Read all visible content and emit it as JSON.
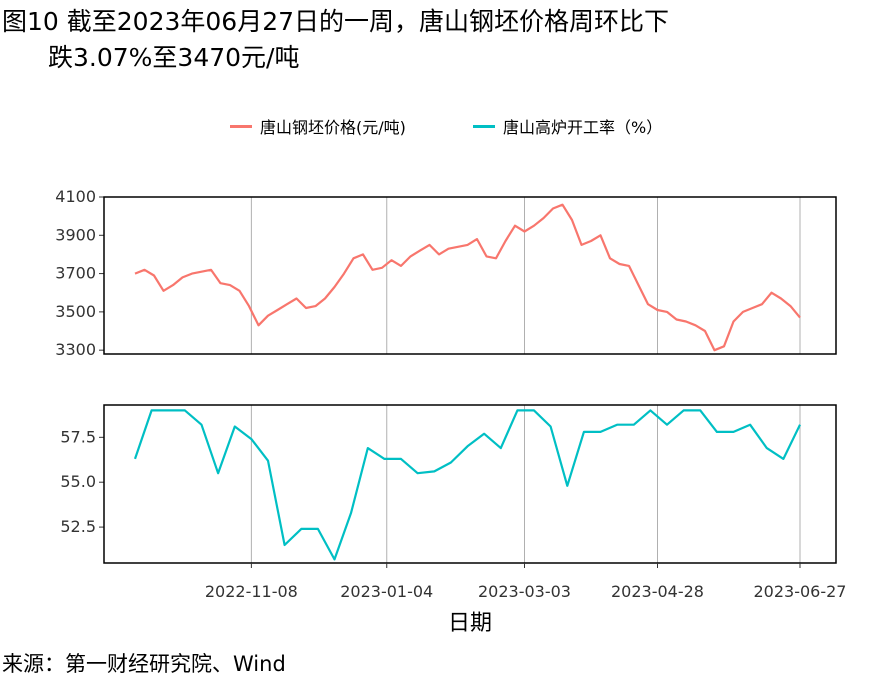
{
  "title": {
    "line1": "图10  截至2023年06月27日的一周，唐山钢坯价格周环比下",
    "line2": "跌3.07%至3470元/吨"
  },
  "source": "来源：第一财经研究院、Wind",
  "colors": {
    "price": "#F8766D",
    "blast": "#00BFC4",
    "grid": "#b0b0b0"
  },
  "chart_data": [
    {
      "type": "line",
      "series": [
        {
          "name": "唐山钢坯价格(元/吨)"
        }
      ],
      "xlabel": "日期",
      "x_ticks": [
        "2022-11-08",
        "2023-01-04",
        "2023-03-03",
        "2023-04-28",
        "2023-06-27"
      ],
      "y_ticks": [
        4100,
        3900,
        3700,
        3500,
        3300
      ],
      "ylim": [
        3280,
        4100
      ],
      "x": [
        "2022-09-20",
        "2022-09-24",
        "2022-09-28",
        "2022-10-02",
        "2022-10-06",
        "2022-10-10",
        "2022-10-14",
        "2022-10-18",
        "2022-10-22",
        "2022-10-26",
        "2022-10-30",
        "2022-11-03",
        "2022-11-07",
        "2022-11-11",
        "2022-11-15",
        "2022-11-19",
        "2022-11-23",
        "2022-11-27",
        "2022-12-01",
        "2022-12-05",
        "2022-12-09",
        "2022-12-13",
        "2022-12-17",
        "2022-12-21",
        "2022-12-25",
        "2022-12-29",
        "2023-01-02",
        "2023-01-06",
        "2023-01-10",
        "2023-01-14",
        "2023-01-18",
        "2023-01-22",
        "2023-01-26",
        "2023-01-30",
        "2023-02-03",
        "2023-02-07",
        "2023-02-11",
        "2023-02-15",
        "2023-02-19",
        "2023-02-23",
        "2023-02-27",
        "2023-03-03",
        "2023-03-07",
        "2023-03-11",
        "2023-03-15",
        "2023-03-19",
        "2023-03-23",
        "2023-03-27",
        "2023-03-31",
        "2023-04-04",
        "2023-04-08",
        "2023-04-12",
        "2023-04-16",
        "2023-04-20",
        "2023-04-24",
        "2023-04-28",
        "2023-05-02",
        "2023-05-06",
        "2023-05-10",
        "2023-05-14",
        "2023-05-18",
        "2023-05-22",
        "2023-05-26",
        "2023-05-30",
        "2023-06-03",
        "2023-06-07",
        "2023-06-11",
        "2023-06-15",
        "2023-06-19",
        "2023-06-23",
        "2023-06-27"
      ],
      "values": [
        3700,
        3720,
        3690,
        3610,
        3640,
        3680,
        3700,
        3710,
        3720,
        3650,
        3640,
        3610,
        3530,
        3430,
        3480,
        3510,
        3540,
        3570,
        3520,
        3530,
        3570,
        3630,
        3700,
        3780,
        3800,
        3720,
        3730,
        3770,
        3740,
        3790,
        3820,
        3850,
        3800,
        3830,
        3840,
        3850,
        3880,
        3790,
        3780,
        3870,
        3950,
        3920,
        3950,
        3990,
        4040,
        4060,
        3980,
        3850,
        3870,
        3900,
        3780,
        3750,
        3740,
        3640,
        3540,
        3510,
        3500,
        3460,
        3450,
        3430,
        3400,
        3300,
        3320,
        3450,
        3500,
        3520,
        3540,
        3600,
        3570,
        3530,
        3470
      ]
    },
    {
      "type": "line",
      "series": [
        {
          "name": "唐山高炉开工率（%）"
        }
      ],
      "xlabel": "日期",
      "x_ticks": [
        "2022-11-08",
        "2023-01-04",
        "2023-03-03",
        "2023-04-28",
        "2023-06-27"
      ],
      "y_ticks": [
        57.5,
        55.0,
        52.5
      ],
      "ylim": [
        50.5,
        59.3
      ],
      "x": [
        "2022-09-20",
        "2022-09-27",
        "2022-10-04",
        "2022-10-11",
        "2022-10-18",
        "2022-10-25",
        "2022-11-01",
        "2022-11-08",
        "2022-11-15",
        "2022-11-22",
        "2022-11-29",
        "2022-12-06",
        "2022-12-13",
        "2022-12-20",
        "2022-12-27",
        "2023-01-03",
        "2023-01-10",
        "2023-01-17",
        "2023-01-24",
        "2023-01-31",
        "2023-02-07",
        "2023-02-14",
        "2023-02-21",
        "2023-02-28",
        "2023-03-07",
        "2023-03-14",
        "2023-03-21",
        "2023-03-28",
        "2023-04-04",
        "2023-04-11",
        "2023-04-18",
        "2023-04-25",
        "2023-05-02",
        "2023-05-09",
        "2023-05-16",
        "2023-05-23",
        "2023-05-30",
        "2023-06-06",
        "2023-06-13",
        "2023-06-20",
        "2023-06-27"
      ],
      "values": [
        56.3,
        59.0,
        59.0,
        59.0,
        58.2,
        55.5,
        58.1,
        57.4,
        56.2,
        51.5,
        52.4,
        52.4,
        50.7,
        53.3,
        56.9,
        56.3,
        56.3,
        55.5,
        55.6,
        56.1,
        57.0,
        57.7,
        56.9,
        59.0,
        59.0,
        58.1,
        54.8,
        57.8,
        57.8,
        58.2,
        58.2,
        59.0,
        58.2,
        59.0,
        59.0,
        57.8,
        57.8,
        58.2,
        56.9,
        56.3,
        58.2
      ]
    }
  ]
}
